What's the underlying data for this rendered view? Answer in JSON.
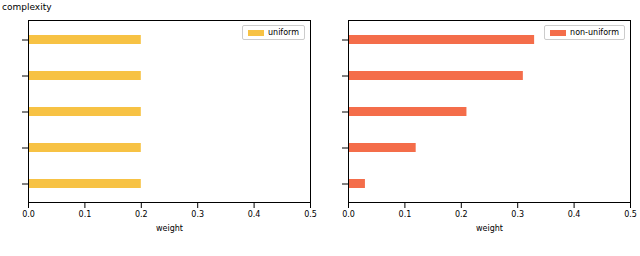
{
  "chart_data": [
    {
      "type": "bar",
      "orientation": "horizontal",
      "ylabel": "complexity",
      "xlabel": "weight",
      "categories": [
        null,
        null,
        null,
        null,
        null
      ],
      "series": [
        {
          "name": "uniform",
          "color": "#f7c244",
          "values": [
            0.2,
            0.2,
            0.2,
            0.2,
            0.2
          ]
        }
      ],
      "xlim": [
        0,
        0.5
      ],
      "xticks": [
        {
          "value": 0,
          "label": "0.0"
        },
        0.1,
        0.2,
        0.3,
        0.4,
        0.5
      ],
      "legend": "upper right",
      "grid": false
    },
    {
      "type": "bar",
      "orientation": "horizontal",
      "xlabel": "weight",
      "categories": [
        null,
        null,
        null,
        null,
        null
      ],
      "series": [
        {
          "name": "non-uniform",
          "color": "#f46d4a",
          "values": [
            0.33,
            0.31,
            0.21,
            0.12,
            0.03
          ]
        }
      ],
      "xlim": [
        0,
        0.5
      ],
      "xticks": [
        {
          "value": 0,
          "label": "0.0"
        },
        0.1,
        0.2,
        0.3,
        0.4,
        0.5
      ],
      "legend": "upper right",
      "grid": false
    }
  ]
}
